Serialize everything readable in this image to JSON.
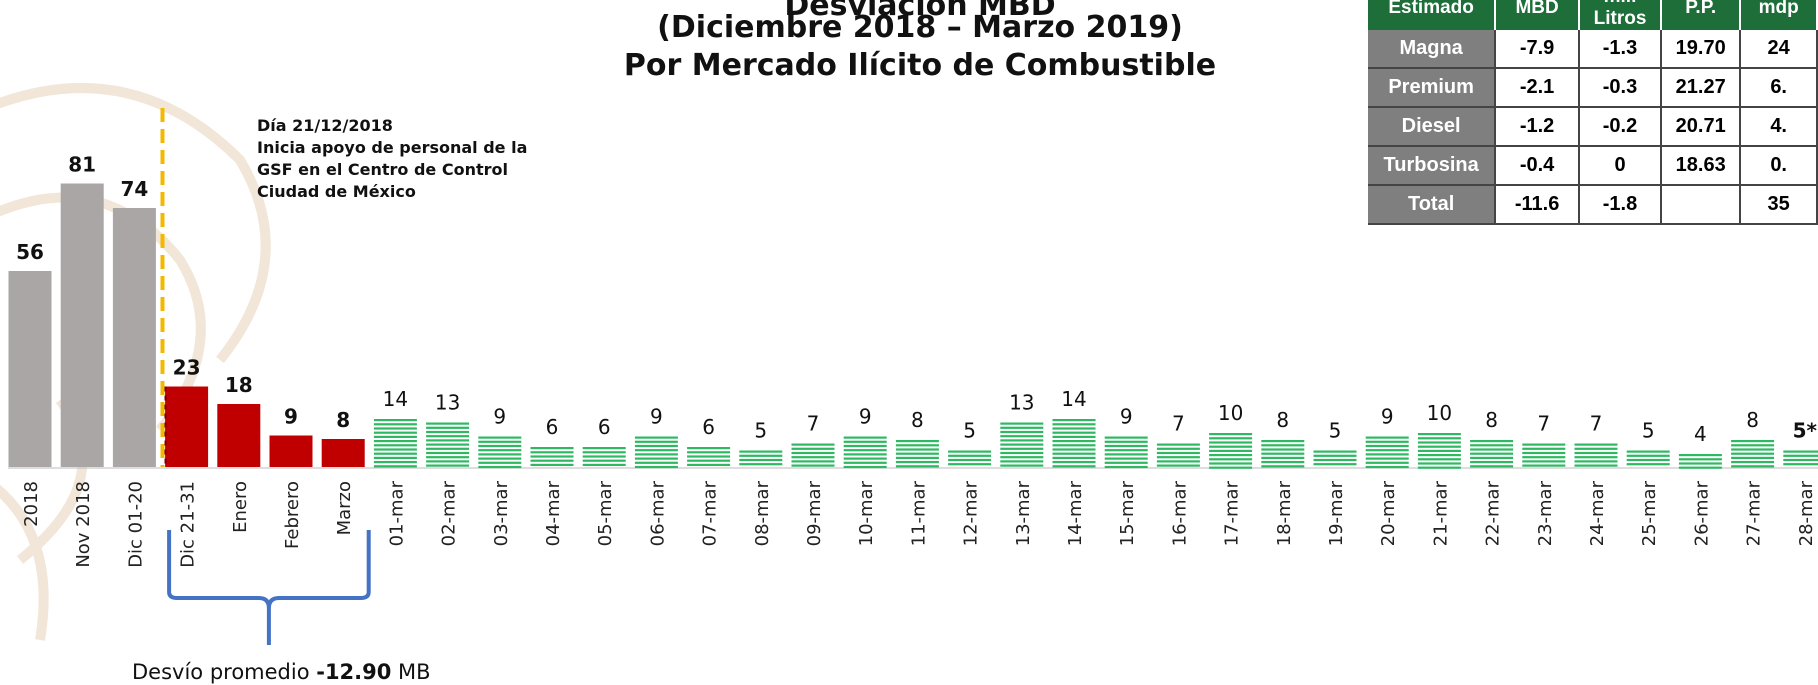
{
  "title": {
    "line1": "Desviación MBD",
    "line2": "(Diciembre 2018 – Marzo 2019)",
    "line3": "Por Mercado Ilícito de Combustible"
  },
  "annotation": {
    "line1": "Día 21/12/2018",
    "line2": "Inicia apoyo de personal de la",
    "line3": "GSF en el Centro de Control",
    "line4": "Ciudad de México"
  },
  "average": {
    "prefix": "Desvío promedio ",
    "value": "-12.90",
    "unit": " MB"
  },
  "table": {
    "headers": [
      "Estimado",
      "MBD",
      "mill Litros",
      "P.P.",
      "mdp"
    ],
    "rows": [
      [
        "Magna",
        "-7.9",
        "-1.3",
        "19.70",
        "24"
      ],
      [
        "Premium",
        "-2.1",
        "-0.3",
        "21.27",
        "6."
      ],
      [
        "Diesel",
        "-1.2",
        "-0.2",
        "20.71",
        "4."
      ],
      [
        "Turbosina",
        "-0.4",
        "0",
        "18.63",
        "0."
      ],
      [
        "Total",
        "-11.6",
        "-1.8",
        "",
        "35"
      ]
    ]
  },
  "colors": {
    "gray": "#a9a6a5",
    "red": "#c00000",
    "green": "#2fb862",
    "marker_line": "#f5b800",
    "brace": "#4472c4",
    "table_header": "#1e6e3a",
    "table_row_label": "#7f7f7f"
  },
  "chart_data": {
    "type": "bar",
    "categories": [
      "2018",
      "Nov 2018",
      "Dic 01-20",
      "Dic 21-31",
      "Enero",
      "Febrero",
      "Marzo",
      "01-mar",
      "02-mar",
      "03-mar",
      "04-mar",
      "05-mar",
      "06-mar",
      "07-mar",
      "08-mar",
      "09-mar",
      "10-mar",
      "11-mar",
      "12-mar",
      "13-mar",
      "14-mar",
      "15-mar",
      "16-mar",
      "17-mar",
      "18-mar",
      "19-mar",
      "20-mar",
      "21-mar",
      "22-mar",
      "23-mar",
      "24-mar",
      "25-mar",
      "26-mar",
      "27-mar",
      "28-mar"
    ],
    "values": [
      56,
      81,
      74,
      23,
      18,
      9,
      8,
      14,
      13,
      9,
      6,
      6,
      9,
      6,
      5,
      7,
      9,
      8,
      5,
      13,
      14,
      9,
      7,
      10,
      8,
      5,
      9,
      10,
      8,
      7,
      7,
      5,
      4,
      8,
      5
    ],
    "value_labels": [
      "56",
      "81",
      "74",
      "23",
      "18",
      "9",
      "8",
      "14",
      "13",
      "9",
      "6",
      "6",
      "9",
      "6",
      "5",
      "7",
      "9",
      "8",
      "5",
      "13",
      "14",
      "9",
      "7",
      "10",
      "8",
      "5",
      "9",
      "10",
      "8",
      "7",
      "7",
      "5",
      "4",
      "8",
      "5*"
    ],
    "groups": [
      "gray",
      "gray",
      "gray",
      "red",
      "red",
      "red",
      "red",
      "green",
      "green",
      "green",
      "green",
      "green",
      "green",
      "green",
      "green",
      "green",
      "green",
      "green",
      "green",
      "green",
      "green",
      "green",
      "green",
      "green",
      "green",
      "green",
      "green",
      "green",
      "green",
      "green",
      "green",
      "green",
      "green",
      "green",
      "green"
    ],
    "ylim": [
      0,
      90
    ]
  }
}
